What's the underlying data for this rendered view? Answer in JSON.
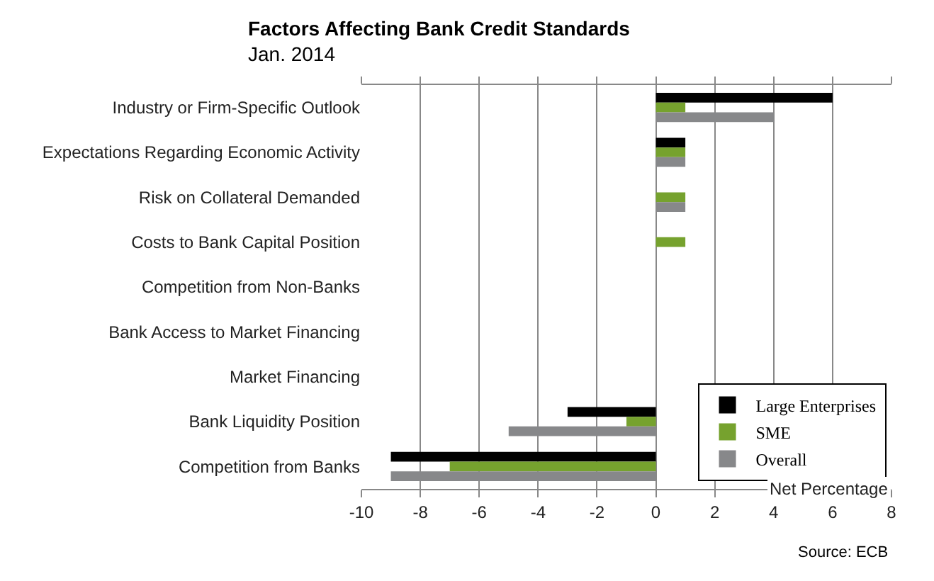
{
  "chart_data": {
    "type": "bar",
    "orientation": "horizontal",
    "title": "Factors Affecting Bank Credit Standards",
    "subtitle": "Jan. 2014",
    "xlabel": "Net Percentage",
    "categories": [
      "Industry or Firm-Specific Outlook",
      "Expectations Regarding Economic Activity",
      "Risk on Collateral Demanded",
      "Costs to Bank Capital Position",
      "Competition from Non-Banks",
      "Bank Access to Market Financing",
      "Market Financing",
      "Bank Liquidity Position",
      "Competition from Banks"
    ],
    "series": [
      {
        "name": "Large Enterprises",
        "color": "#000000",
        "values": [
          6,
          1,
          null,
          null,
          null,
          null,
          null,
          -3,
          -9
        ]
      },
      {
        "name": "SME",
        "color": "#76a22e",
        "values": [
          1,
          1,
          1,
          1,
          null,
          null,
          null,
          -1,
          -7
        ]
      },
      {
        "name": "Overall",
        "color": "#87888a",
        "values": [
          4,
          1,
          1,
          null,
          null,
          null,
          null,
          -5,
          -9
        ]
      }
    ],
    "xlim": [
      -10,
      8
    ],
    "xticks": [
      -10,
      -8,
      -6,
      -4,
      -2,
      0,
      2,
      4,
      6,
      8
    ],
    "grid": "x",
    "legend": "bottom right",
    "annotations": [
      "Source: ECB"
    ]
  }
}
